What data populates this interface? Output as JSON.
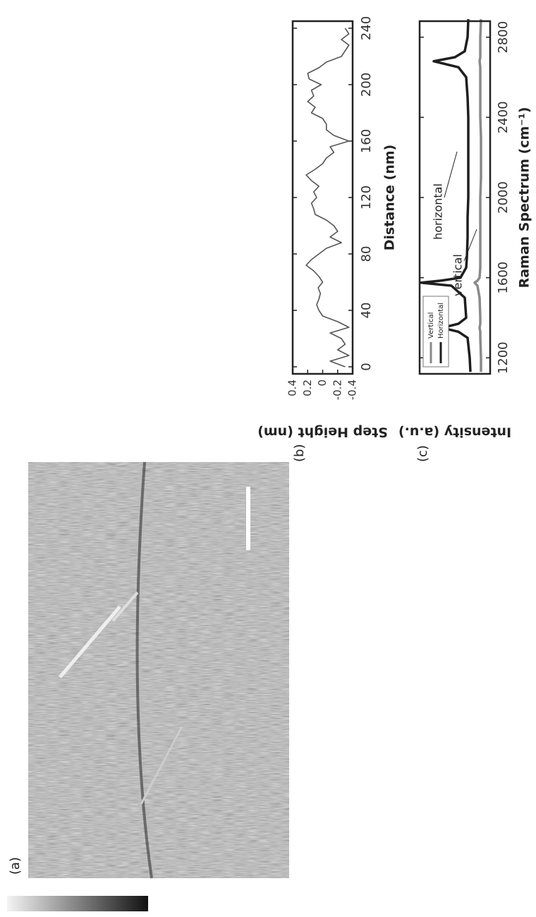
{
  "figure": {
    "panel_a_label": "(a)"
  },
  "chart_data": [
    {
      "type": "line",
      "panel": "(b)",
      "x_label": "Distance (nm)",
      "y_label": "Step Height (nm)",
      "x": [
        0,
        4,
        8,
        12,
        16,
        20,
        24,
        28,
        32,
        36,
        40,
        44,
        48,
        52,
        56,
        60,
        64,
        68,
        72,
        76,
        80,
        84,
        88,
        92,
        96,
        100,
        104,
        108,
        112,
        116,
        120,
        124,
        128,
        132,
        136,
        140,
        144,
        148,
        152,
        156,
        160,
        164,
        168,
        172,
        176,
        180,
        184,
        188,
        192,
        196,
        200,
        204,
        208,
        212,
        216,
        220,
        224,
        228,
        232,
        236,
        240
      ],
      "series": [
        {
          "color": "#555555",
          "values": [
            -0.3,
            -0.1,
            -0.35,
            -0.2,
            -0.3,
            -0.25,
            -0.1,
            -0.35,
            -0.2,
            0.0,
            0.05,
            0.08,
            0.05,
            0.03,
            0.06,
            0.0,
            0.05,
            0.12,
            0.22,
            0.15,
            0.05,
            -0.05,
            -0.25,
            -0.1,
            -0.2,
            -0.15,
            -0.05,
            0.1,
            0.12,
            0.15,
            0.08,
            0.12,
            0.05,
            0.15,
            0.22,
            0.1,
            0.0,
            -0.05,
            -0.15,
            -0.1,
            -0.35,
            -0.15,
            -0.05,
            -0.05,
            0.0,
            0.15,
            0.1,
            0.2,
            0.12,
            0.15,
            0.02,
            0.18,
            0.2,
            0.05,
            -0.05,
            -0.25,
            -0.3,
            -0.35,
            -0.25,
            -0.35,
            -0.3
          ]
        }
      ],
      "xlim": [
        -5,
        245
      ],
      "xticks": [
        0,
        40,
        80,
        120,
        160,
        200,
        240
      ],
      "ylim": [
        -0.4,
        0.4
      ],
      "yticks": [
        0.4,
        0.2,
        0,
        -0.2,
        -0.4
      ]
    },
    {
      "type": "line",
      "panel": "(c)",
      "x_label": "Raman Spectrum (cm⁻¹)",
      "y_label": "Intensity (a.u.)",
      "x": [
        1130,
        1200,
        1300,
        1330,
        1350,
        1370,
        1400,
        1500,
        1560,
        1575,
        1585,
        1600,
        1650,
        1700,
        1800,
        1900,
        2000,
        2100,
        2200,
        2300,
        2400,
        2500,
        2600,
        2650,
        2680,
        2700,
        2730,
        2800,
        2890
      ],
      "series": [
        {
          "name": "Vertical",
          "color": "#8a8a8a",
          "values": [
            0.13,
            0.13,
            0.14,
            0.14,
            0.15,
            0.14,
            0.14,
            0.15,
            0.18,
            0.22,
            0.18,
            0.15,
            0.14,
            0.14,
            0.14,
            0.14,
            0.14,
            0.13,
            0.13,
            0.13,
            0.14,
            0.14,
            0.14,
            0.14,
            0.15,
            0.14,
            0.14,
            0.14,
            0.13
          ]
        },
        {
          "name": "Horizontal",
          "color": "#1e1e1e",
          "values": [
            0.28,
            0.29,
            0.32,
            0.45,
            0.68,
            0.45,
            0.34,
            0.36,
            0.55,
            0.98,
            0.7,
            0.42,
            0.34,
            0.33,
            0.32,
            0.32,
            0.31,
            0.31,
            0.31,
            0.31,
            0.31,
            0.32,
            0.34,
            0.45,
            0.8,
            0.5,
            0.36,
            0.32,
            0.31
          ]
        }
      ],
      "xlim": [
        1120,
        2880
      ],
      "xticks": [
        1200,
        1600,
        2000,
        2400,
        2800
      ],
      "ylim": [
        0,
        1
      ],
      "legend": "upper left",
      "annotations": [
        "vertical",
        "horizontal"
      ]
    }
  ]
}
